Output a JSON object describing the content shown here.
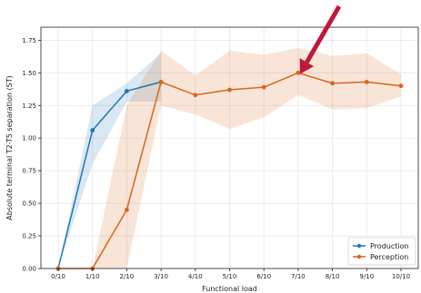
{
  "chart_data": {
    "type": "line",
    "title": "",
    "xlabel": "Functional load",
    "ylabel": "Absolute terminal T2-T5 separation (ST)",
    "categories": [
      "0/10",
      "1/10",
      "2/10",
      "3/10",
      "4/10",
      "5/10",
      "6/10",
      "7/10",
      "8/10",
      "9/10",
      "10/10"
    ],
    "ylim": [
      0,
      1.85
    ],
    "yticks": [
      0.0,
      0.25,
      0.5,
      0.75,
      1.0,
      1.25,
      1.5,
      1.75
    ],
    "ytick_labels": [
      "0.00",
      "0.25",
      "0.50",
      "0.75",
      "1.00",
      "1.25",
      "1.50",
      "1.75"
    ],
    "grid": true,
    "legend_position": "bottom-right",
    "series": [
      {
        "name": "Production",
        "color": "#1f77b4",
        "values": [
          0.0,
          1.06,
          1.36,
          1.43,
          null,
          null,
          null,
          null,
          null,
          null,
          null
        ],
        "ci_low": [
          0.0,
          0.8,
          1.28,
          1.28,
          null,
          null,
          null,
          null,
          null,
          null,
          null
        ],
        "ci_high": [
          0.0,
          1.25,
          1.42,
          1.65,
          null,
          null,
          null,
          null,
          null,
          null,
          null
        ]
      },
      {
        "name": "Perception",
        "color": "#d9651a",
        "values": [
          0.0,
          0.0,
          0.45,
          1.43,
          1.33,
          1.37,
          1.39,
          1.5,
          1.42,
          1.43,
          1.4
        ],
        "ci_low": [
          0.0,
          0.0,
          0.0,
          1.25,
          1.18,
          1.07,
          1.16,
          1.33,
          1.22,
          1.23,
          1.32
        ],
        "ci_high": [
          0.0,
          0.0,
          1.25,
          1.67,
          1.48,
          1.67,
          1.64,
          1.69,
          1.63,
          1.65,
          1.49
        ]
      }
    ],
    "annotation": {
      "type": "arrow",
      "color": "#c0183a",
      "points_to_category": "7/10",
      "points_to_value": 1.47
    }
  }
}
